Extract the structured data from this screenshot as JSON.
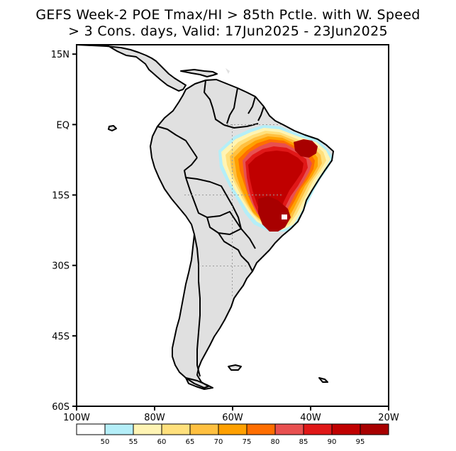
{
  "title_line1": "GEFS Week-2 POE Tmax/HI > 85th Pctle. with W. Speed",
  "title_line2": "> 3 Cons. days, Valid: 17Jun2025 - 23Jun2025",
  "map": {
    "lon_range": [
      -100,
      -20
    ],
    "lat_range": [
      -60,
      17
    ],
    "lon_ticks": [
      {
        "value": -100,
        "label": "100W"
      },
      {
        "value": -80,
        "label": "80W"
      },
      {
        "value": -60,
        "label": "60W"
      },
      {
        "value": -40,
        "label": "40W"
      },
      {
        "value": -20,
        "label": "20W"
      }
    ],
    "lat_ticks": [
      {
        "value": 15,
        "label": "15N"
      },
      {
        "value": 0,
        "label": "EQ"
      },
      {
        "value": -15,
        "label": "15S"
      },
      {
        "value": -30,
        "label": "30S"
      },
      {
        "value": -45,
        "label": "45S"
      },
      {
        "value": -60,
        "label": "60S"
      }
    ],
    "land_color": "#e0e0e0",
    "border_color": "#000000"
  },
  "colorbar": {
    "labels": [
      "50",
      "55",
      "60",
      "65",
      "70",
      "75",
      "80",
      "85",
      "90",
      "95"
    ],
    "colors": [
      "#ffffff",
      "#b4eef8",
      "#fff4b4",
      "#ffe07c",
      "#ffc040",
      "#ffa000",
      "#ff6e00",
      "#e85050",
      "#e01818",
      "#c00000",
      "#a80000"
    ]
  }
}
